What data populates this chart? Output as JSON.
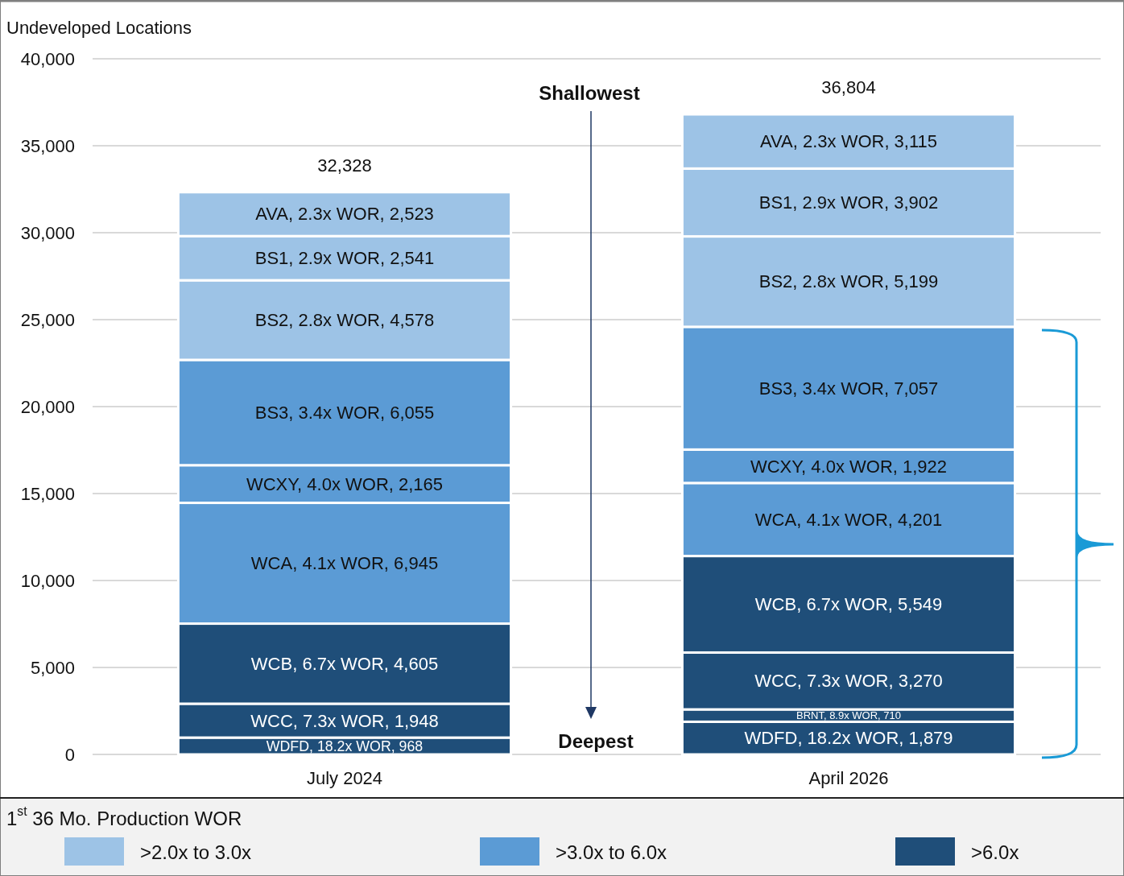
{
  "chart_data": {
    "type": "bar",
    "stacked": true,
    "ylabel": "Undeveloped Locations",
    "legend_title": "1$^{st}$ 36 Mo. Production WOR",
    "legend": "bottom",
    "grid": "y",
    "categories": [
      "July 2024",
      "April 2026"
    ],
    "ylim": [
      0,
      40000
    ],
    "yticks": [
      {
        "value": 0,
        "label": "0"
      },
      {
        "value": 5000,
        "label": "5,000"
      },
      {
        "value": 10000,
        "label": "10,000"
      },
      {
        "value": 15000,
        "label": "15,000"
      },
      {
        "value": 20000,
        "label": "20,000"
      },
      {
        "value": 25000,
        "label": "25,000"
      },
      {
        "value": 30000,
        "label": "30,000"
      },
      {
        "value": 35000,
        "label": "35,000"
      },
      {
        "value": 40000,
        "label": "40,000"
      }
    ],
    "series": [
      {
        "color": "#1f4e79",
        "values": [
          968,
          1879
        ],
        "value_labels": [
          "WDFD, 18.2x WOR, 968",
          "WDFD, 18.2x WOR, 1,879"
        ]
      },
      {
        "color": "#1f4e79",
        "values": [
          null,
          710
        ],
        "value_labels": [
          null,
          "BRNT, 8.9x WOR, 710"
        ]
      },
      {
        "color": "#1f4e79",
        "values": [
          1948,
          3270
        ],
        "value_labels": [
          "WCC, 7.3x WOR, 1,948",
          "WCC, 7.3x WOR, 3,270"
        ]
      },
      {
        "name": ">6.0x",
        "color": "#1f4e79",
        "values": [
          4605,
          5549
        ],
        "value_labels": [
          "WCB, 6.7x WOR, 4,605",
          "WCB, 6.7x WOR, 5,549"
        ]
      },
      {
        "color": "#5b9bd5",
        "values": [
          6945,
          4201
        ],
        "value_labels": [
          "WCA, 4.1x WOR, 6,945",
          "WCA, 4.1x WOR, 4,201"
        ]
      },
      {
        "color": "#5b9bd5",
        "values": [
          2165,
          1922
        ],
        "value_labels": [
          "WCXY, 4.0x WOR, 2,165",
          "WCXY, 4.0x WOR, 1,922"
        ]
      },
      {
        "name": ">3.0x to 6.0x",
        "color": "#5b9bd5",
        "values": [
          6055,
          7057
        ],
        "value_labels": [
          "BS3, 3.4x WOR, 6,055",
          "BS3, 3.4x WOR, 7,057"
        ]
      },
      {
        "color": "#9dc3e6",
        "values": [
          4578,
          5199
        ],
        "value_labels": [
          "BS2, 2.8x WOR, 4,578",
          "BS2, 2.8x WOR, 5,199"
        ]
      },
      {
        "color": "#9dc3e6",
        "values": [
          2541,
          3902
        ],
        "value_labels": [
          "BS1, 2.9x WOR, 2,541",
          "BS1, 2.9x WOR, 3,902"
        ]
      },
      {
        "name": ">2.0x to 3.0x",
        "color": "#9dc3e6",
        "values": [
          2523,
          3115
        ],
        "value_labels": [
          "AVA, 2.3x WOR, 2,523",
          "AVA, 2.3x WOR, 3,115"
        ]
      }
    ],
    "totals": [
      "32,328",
      "36,804"
    ],
    "annotations": [
      "Shallowest",
      "Deepest"
    ]
  }
}
